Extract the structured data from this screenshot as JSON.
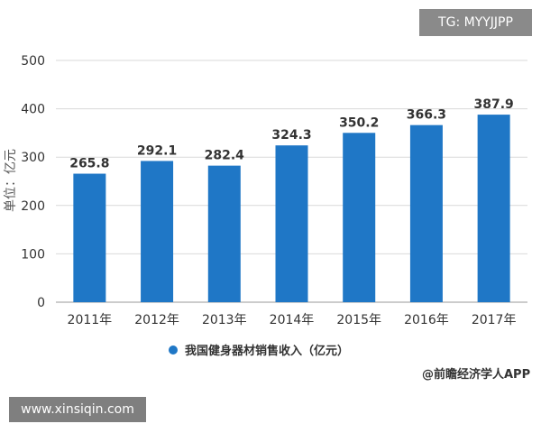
{
  "badges": {
    "telegram": "TG: MYYJJPP",
    "website": "www.xinsiqin.com"
  },
  "source": "@前瞻经济学人APP",
  "colors": {
    "bar": "#1f77c6",
    "grid": "#d9d9d9",
    "axis": "#999999"
  },
  "chart_data": {
    "type": "bar",
    "categories": [
      "2011年",
      "2012年",
      "2013年",
      "2014年",
      "2015年",
      "2016年",
      "2017年"
    ],
    "series": [
      {
        "name": "我国健身器材销售收入（亿元）",
        "values": [
          265.8,
          292.1,
          282.4,
          324.3,
          350.2,
          366.3,
          387.9
        ]
      }
    ],
    "data_labels": [
      "265.8",
      "292.1",
      "282.4",
      "324.3",
      "350.2",
      "366.3",
      "387.9"
    ],
    "ylabel": "单位：亿元",
    "ylim": [
      0,
      500
    ],
    "yticks": [
      0,
      100,
      200,
      300,
      400,
      500
    ],
    "grid": true,
    "legend_position": "bottom"
  }
}
